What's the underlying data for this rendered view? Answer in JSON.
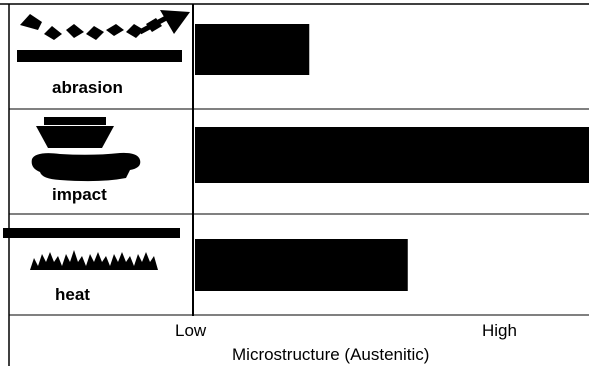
{
  "chart_data": {
    "type": "bar",
    "orientation": "horizontal",
    "categories": [
      "abrasion",
      "impact",
      "heat"
    ],
    "values": [
      0.29,
      1.0,
      0.54
    ],
    "xlim": [
      0,
      1
    ],
    "tick_labels": {
      "low": "Low",
      "high": "High"
    },
    "xlabel": "Microstructure  (Austenitic)",
    "grid": false,
    "legend": "none",
    "bar_color": "#000000",
    "icons": [
      "abrasion-icon",
      "impact-icon",
      "heat-icon"
    ]
  }
}
